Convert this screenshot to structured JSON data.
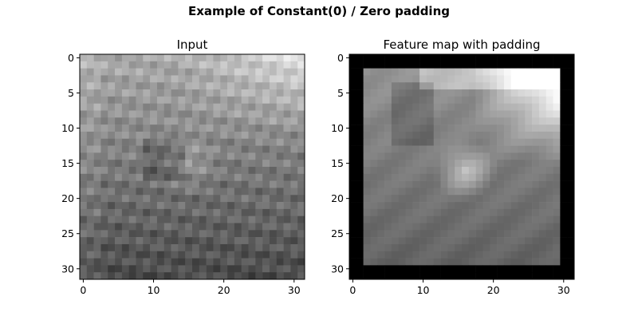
{
  "figure": {
    "suptitle": "Example of Constant(0) / Zero padding"
  },
  "chart_data": [
    {
      "type": "heatmap",
      "title": "Input",
      "colormap": "gray",
      "shape": [
        32,
        32
      ],
      "xlim": [
        -0.5,
        31.5
      ],
      "ylim": [
        31.5,
        -0.5
      ],
      "xticks": [
        0,
        10,
        20,
        30
      ],
      "yticks": [
        0,
        5,
        10,
        15,
        20,
        25,
        30
      ],
      "grid": false
    },
    {
      "type": "heatmap",
      "title": "Feature map with padding",
      "colormap": "gray",
      "shape": [
        32,
        32
      ],
      "padding": {
        "mode": "constant",
        "value": 0,
        "inner_range": [
          2,
          29
        ]
      },
      "xlim": [
        -0.5,
        31.5
      ],
      "ylim": [
        31.5,
        -0.5
      ],
      "xticks": [
        0,
        10,
        20,
        30
      ],
      "yticks": [
        0,
        5,
        10,
        15,
        20,
        25,
        30
      ],
      "grid": false
    }
  ]
}
